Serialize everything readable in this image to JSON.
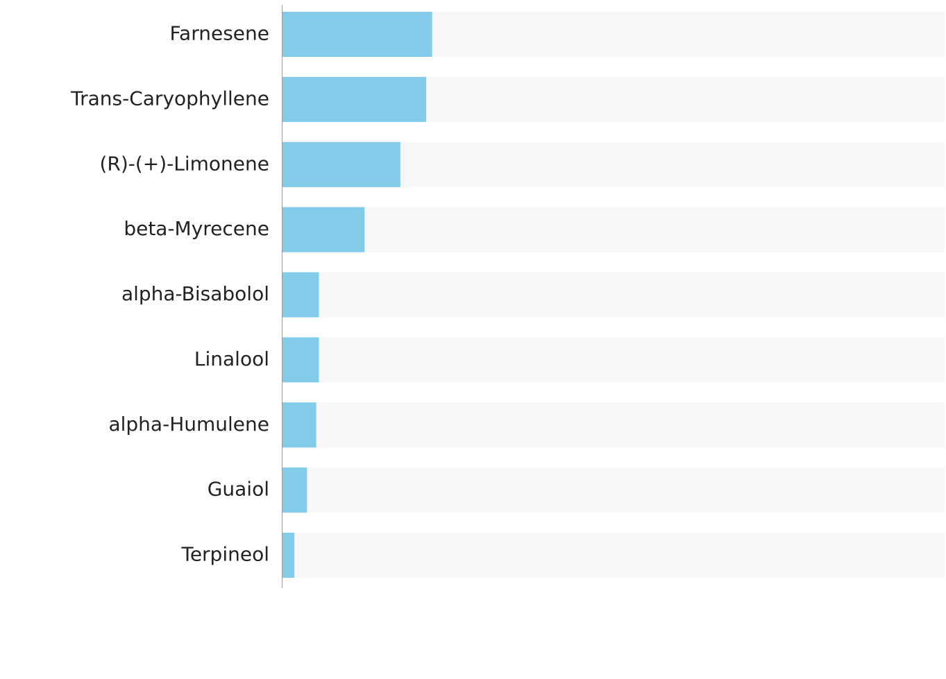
{
  "chart_data": {
    "type": "bar",
    "orientation": "horizontal",
    "categories": [
      "Farnesene",
      "Trans-Caryophyllene",
      "(R)-(+)-Limonene",
      "beta-Myrecene",
      "alpha-Bisabolol",
      "Linalool",
      "alpha-Humulene",
      "Guaiol",
      "Terpineol"
    ],
    "values": [
      22.6,
      21.7,
      17.8,
      12.4,
      5.5,
      5.5,
      5.1,
      3.7,
      1.8
    ],
    "xlim": [
      0,
      100
    ],
    "color": "#82cbe9",
    "track_color": "#f5f7f9"
  }
}
